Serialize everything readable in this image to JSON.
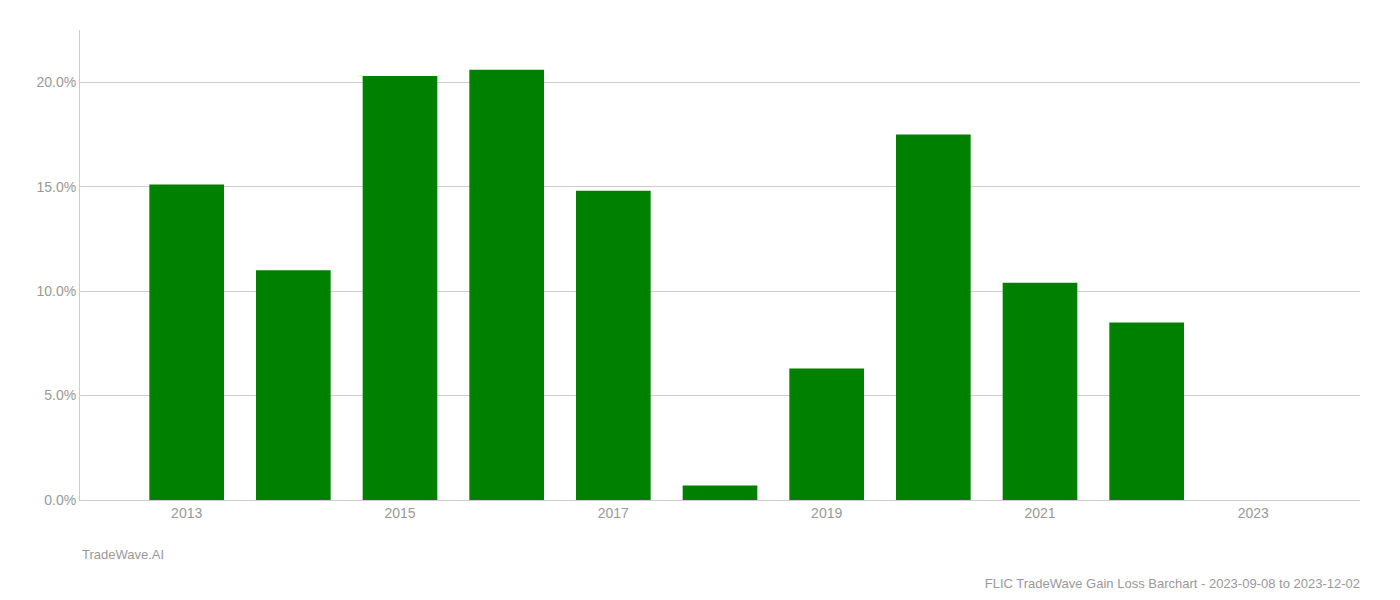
{
  "chart_data": {
    "type": "bar",
    "title": "FLIC TradeWave Gain Loss Barchart - 2023-09-08 to 2023-12-02",
    "annotations": [
      "TradeWave.AI"
    ],
    "x": [
      2013,
      2014,
      2015,
      2016,
      2017,
      2018,
      2019,
      2020,
      2021,
      2022,
      2023
    ],
    "values": [
      0.151,
      0.11,
      0.203,
      0.206,
      0.148,
      0.007,
      0.063,
      0.175,
      0.104,
      0.085,
      0.0
    ],
    "color": "#008000",
    "xlim": [
      2012,
      2024
    ],
    "xticks": [
      2013,
      2015,
      2017,
      2019,
      2021,
      2023
    ],
    "ylim": [
      0,
      0.225
    ],
    "yticks": [
      {
        "value": 0.0,
        "label": "0.0%"
      },
      {
        "value": 0.05,
        "label": "5.0%"
      },
      {
        "value": 0.1,
        "label": "10.0%"
      },
      {
        "value": 0.15,
        "label": "15.0%"
      },
      {
        "value": 0.2,
        "label": "20.0%"
      }
    ],
    "grid": true
  }
}
